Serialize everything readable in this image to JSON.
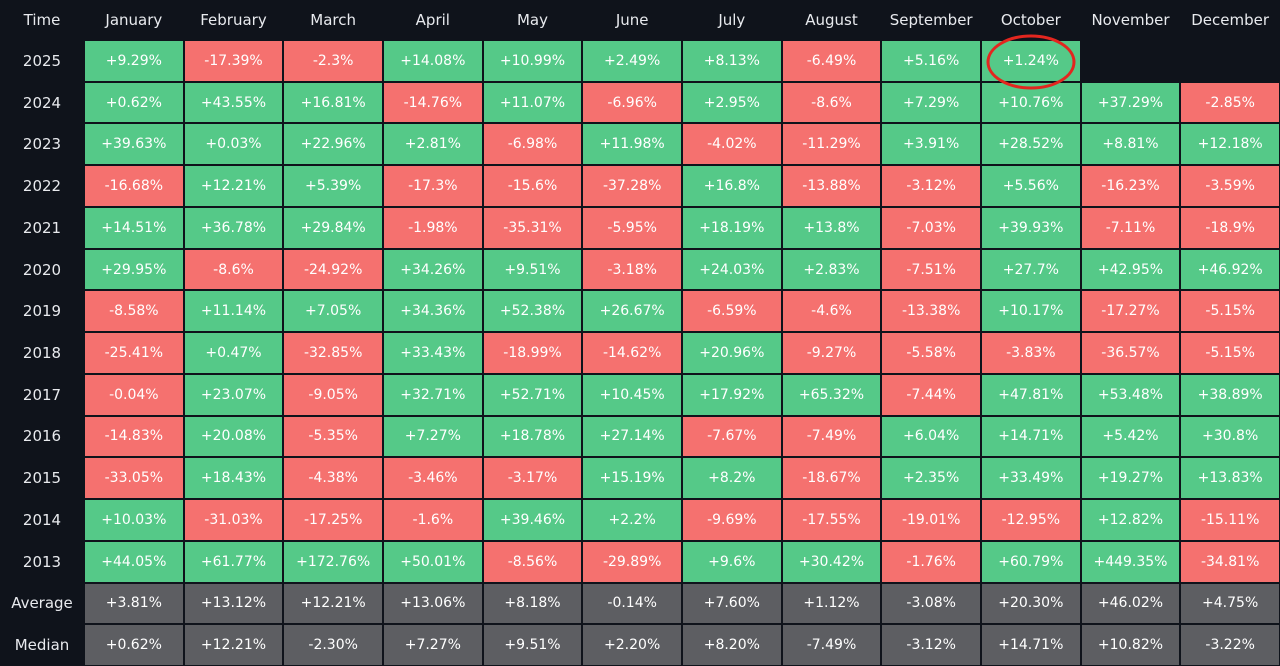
{
  "table": {
    "header": [
      "Time",
      "January",
      "February",
      "March",
      "April",
      "May",
      "June",
      "July",
      "August",
      "September",
      "October",
      "November",
      "December"
    ],
    "rows": [
      [
        "2025",
        "+9.29%",
        "-17.39%",
        "-2.3%",
        "+14.08%",
        "+10.99%",
        "+2.49%",
        "+8.13%",
        "-6.49%",
        "+5.16%",
        "+1.24%"
      ],
      [
        "2024",
        "+0.62%",
        "+43.55%",
        "+16.81%",
        "-14.76%",
        "+11.07%",
        "-6.96%",
        "+2.95%",
        "-8.6%",
        "+7.29%",
        "+10.76%",
        "+37.29%",
        "-2.85%"
      ],
      [
        "2023",
        "+39.63%",
        "+0.03%",
        "+22.96%",
        "+2.81%",
        "-6.98%",
        "+11.98%",
        "-4.02%",
        "-11.29%",
        "+3.91%",
        "+28.52%",
        "+8.81%",
        "+12.18%"
      ],
      [
        "2022",
        "-16.68%",
        "+12.21%",
        "+5.39%",
        "-17.3%",
        "-15.6%",
        "-37.28%",
        "+16.8%",
        "-13.88%",
        "-3.12%",
        "+5.56%",
        "-16.23%",
        "-3.59%"
      ],
      [
        "2021",
        "+14.51%",
        "+36.78%",
        "+29.84%",
        "-1.98%",
        "-35.31%",
        "-5.95%",
        "+18.19%",
        "+13.8%",
        "-7.03%",
        "+39.93%",
        "-7.11%",
        "-18.9%"
      ],
      [
        "2020",
        "+29.95%",
        "-8.6%",
        "-24.92%",
        "+34.26%",
        "+9.51%",
        "-3.18%",
        "+24.03%",
        "+2.83%",
        "-7.51%",
        "+27.7%",
        "+42.95%",
        "+46.92%"
      ],
      [
        "2019",
        "-8.58%",
        "+11.14%",
        "+7.05%",
        "+34.36%",
        "+52.38%",
        "+26.67%",
        "-6.59%",
        "-4.6%",
        "-13.38%",
        "+10.17%",
        "-17.27%",
        "-5.15%"
      ],
      [
        "2018",
        "-25.41%",
        "+0.47%",
        "-32.85%",
        "+33.43%",
        "-18.99%",
        "-14.62%",
        "+20.96%",
        "-9.27%",
        "-5.58%",
        "-3.83%",
        "-36.57%",
        "-5.15%"
      ],
      [
        "2017",
        "-0.04%",
        "+23.07%",
        "-9.05%",
        "+32.71%",
        "+52.71%",
        "+10.45%",
        "+17.92%",
        "+65.32%",
        "-7.44%",
        "+47.81%",
        "+53.48%",
        "+38.89%"
      ],
      [
        "2016",
        "-14.83%",
        "+20.08%",
        "-5.35%",
        "+7.27%",
        "+18.78%",
        "+27.14%",
        "-7.67%",
        "-7.49%",
        "+6.04%",
        "+14.71%",
        "+5.42%",
        "+30.8%"
      ],
      [
        "2015",
        "-33.05%",
        "+18.43%",
        "-4.38%",
        "-3.46%",
        "-3.17%",
        "+15.19%",
        "+8.2%",
        "-18.67%",
        "+2.35%",
        "+33.49%",
        "+19.27%",
        "+13.83%"
      ],
      [
        "2014",
        "+10.03%",
        "-31.03%",
        "-17.25%",
        "-1.6%",
        "+39.46%",
        "+2.2%",
        "-9.69%",
        "-17.55%",
        "-19.01%",
        "-12.95%",
        "+12.82%",
        "-15.11%"
      ],
      [
        "2013",
        "+44.05%",
        "+61.77%",
        "+172.76%",
        "+50.01%",
        "-8.56%",
        "-29.89%",
        "+9.6%",
        "+30.42%",
        "-1.76%",
        "+60.79%",
        "+449.35%",
        "-34.81%"
      ],
      [
        "Average",
        "+3.81%",
        "+13.12%",
        "+12.21%",
        "+13.06%",
        "+8.18%",
        "-0.14%",
        "+7.60%",
        "+1.12%",
        "-3.08%",
        "+20.30%",
        "+46.02%",
        "+4.75%"
      ],
      [
        "Median",
        "+0.62%",
        "+12.21%",
        "-2.30%",
        "+7.27%",
        "+9.51%",
        "+2.20%",
        "+8.20%",
        "-7.49%",
        "-3.12%",
        "+14.71%",
        "+10.82%",
        "-3.22%"
      ]
    ],
    "summary_rows": 2
  }
}
